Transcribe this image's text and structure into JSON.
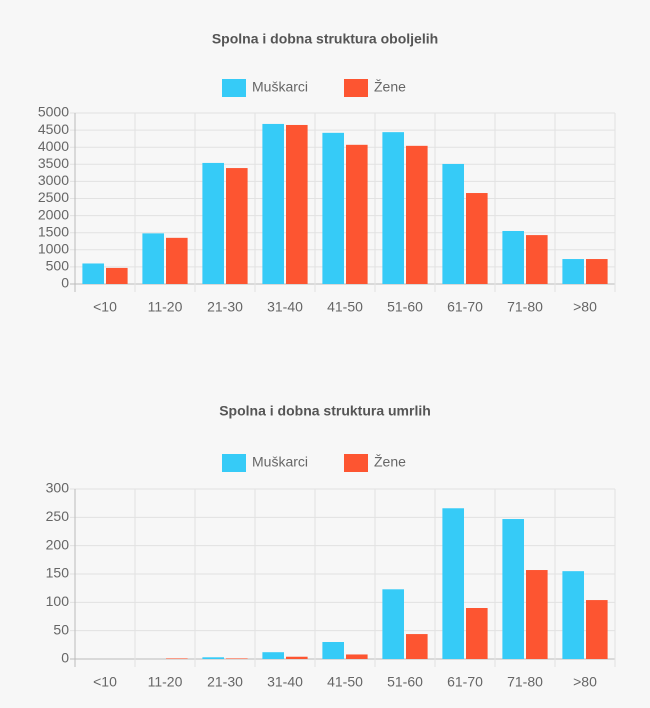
{
  "chart_data": [
    {
      "type": "bar",
      "title": "Spolna i dobna struktura oboljelih",
      "categories": [
        "<10",
        "11-20",
        "21-30",
        "31-40",
        "41-50",
        "51-60",
        "61-70",
        "71-80",
        ">80"
      ],
      "series": [
        {
          "name": "Muškarci",
          "color": "#36cbf7",
          "values": [
            600,
            1480,
            3540,
            4680,
            4420,
            4440,
            3510,
            1550,
            730
          ]
        },
        {
          "name": "Žene",
          "color": "#fd5531",
          "values": [
            470,
            1350,
            3390,
            4650,
            4070,
            4040,
            2660,
            1430,
            730
          ]
        }
      ],
      "ylim": [
        0,
        5000
      ],
      "yticks": [
        0,
        500,
        1000,
        1500,
        2000,
        2500,
        3000,
        3500,
        4000,
        4500,
        5000
      ],
      "grid": true,
      "legend": "top"
    },
    {
      "type": "bar",
      "title": "Spolna i dobna struktura umrlih",
      "categories": [
        "<10",
        "11-20",
        "21-30",
        "31-40",
        "41-50",
        "51-60",
        "61-70",
        "71-80",
        ">80"
      ],
      "series": [
        {
          "name": "Muškarci",
          "color": "#36cbf7",
          "values": [
            0,
            0,
            3,
            12,
            30,
            123,
            266,
            247,
            155
          ]
        },
        {
          "name": "Žene",
          "color": "#fd5531",
          "values": [
            0,
            1,
            1,
            4,
            8,
            44,
            90,
            157,
            104
          ]
        }
      ],
      "ylim": [
        0,
        300
      ],
      "yticks": [
        0,
        50,
        100,
        150,
        200,
        250,
        300
      ],
      "grid": true,
      "legend": "top"
    }
  ]
}
